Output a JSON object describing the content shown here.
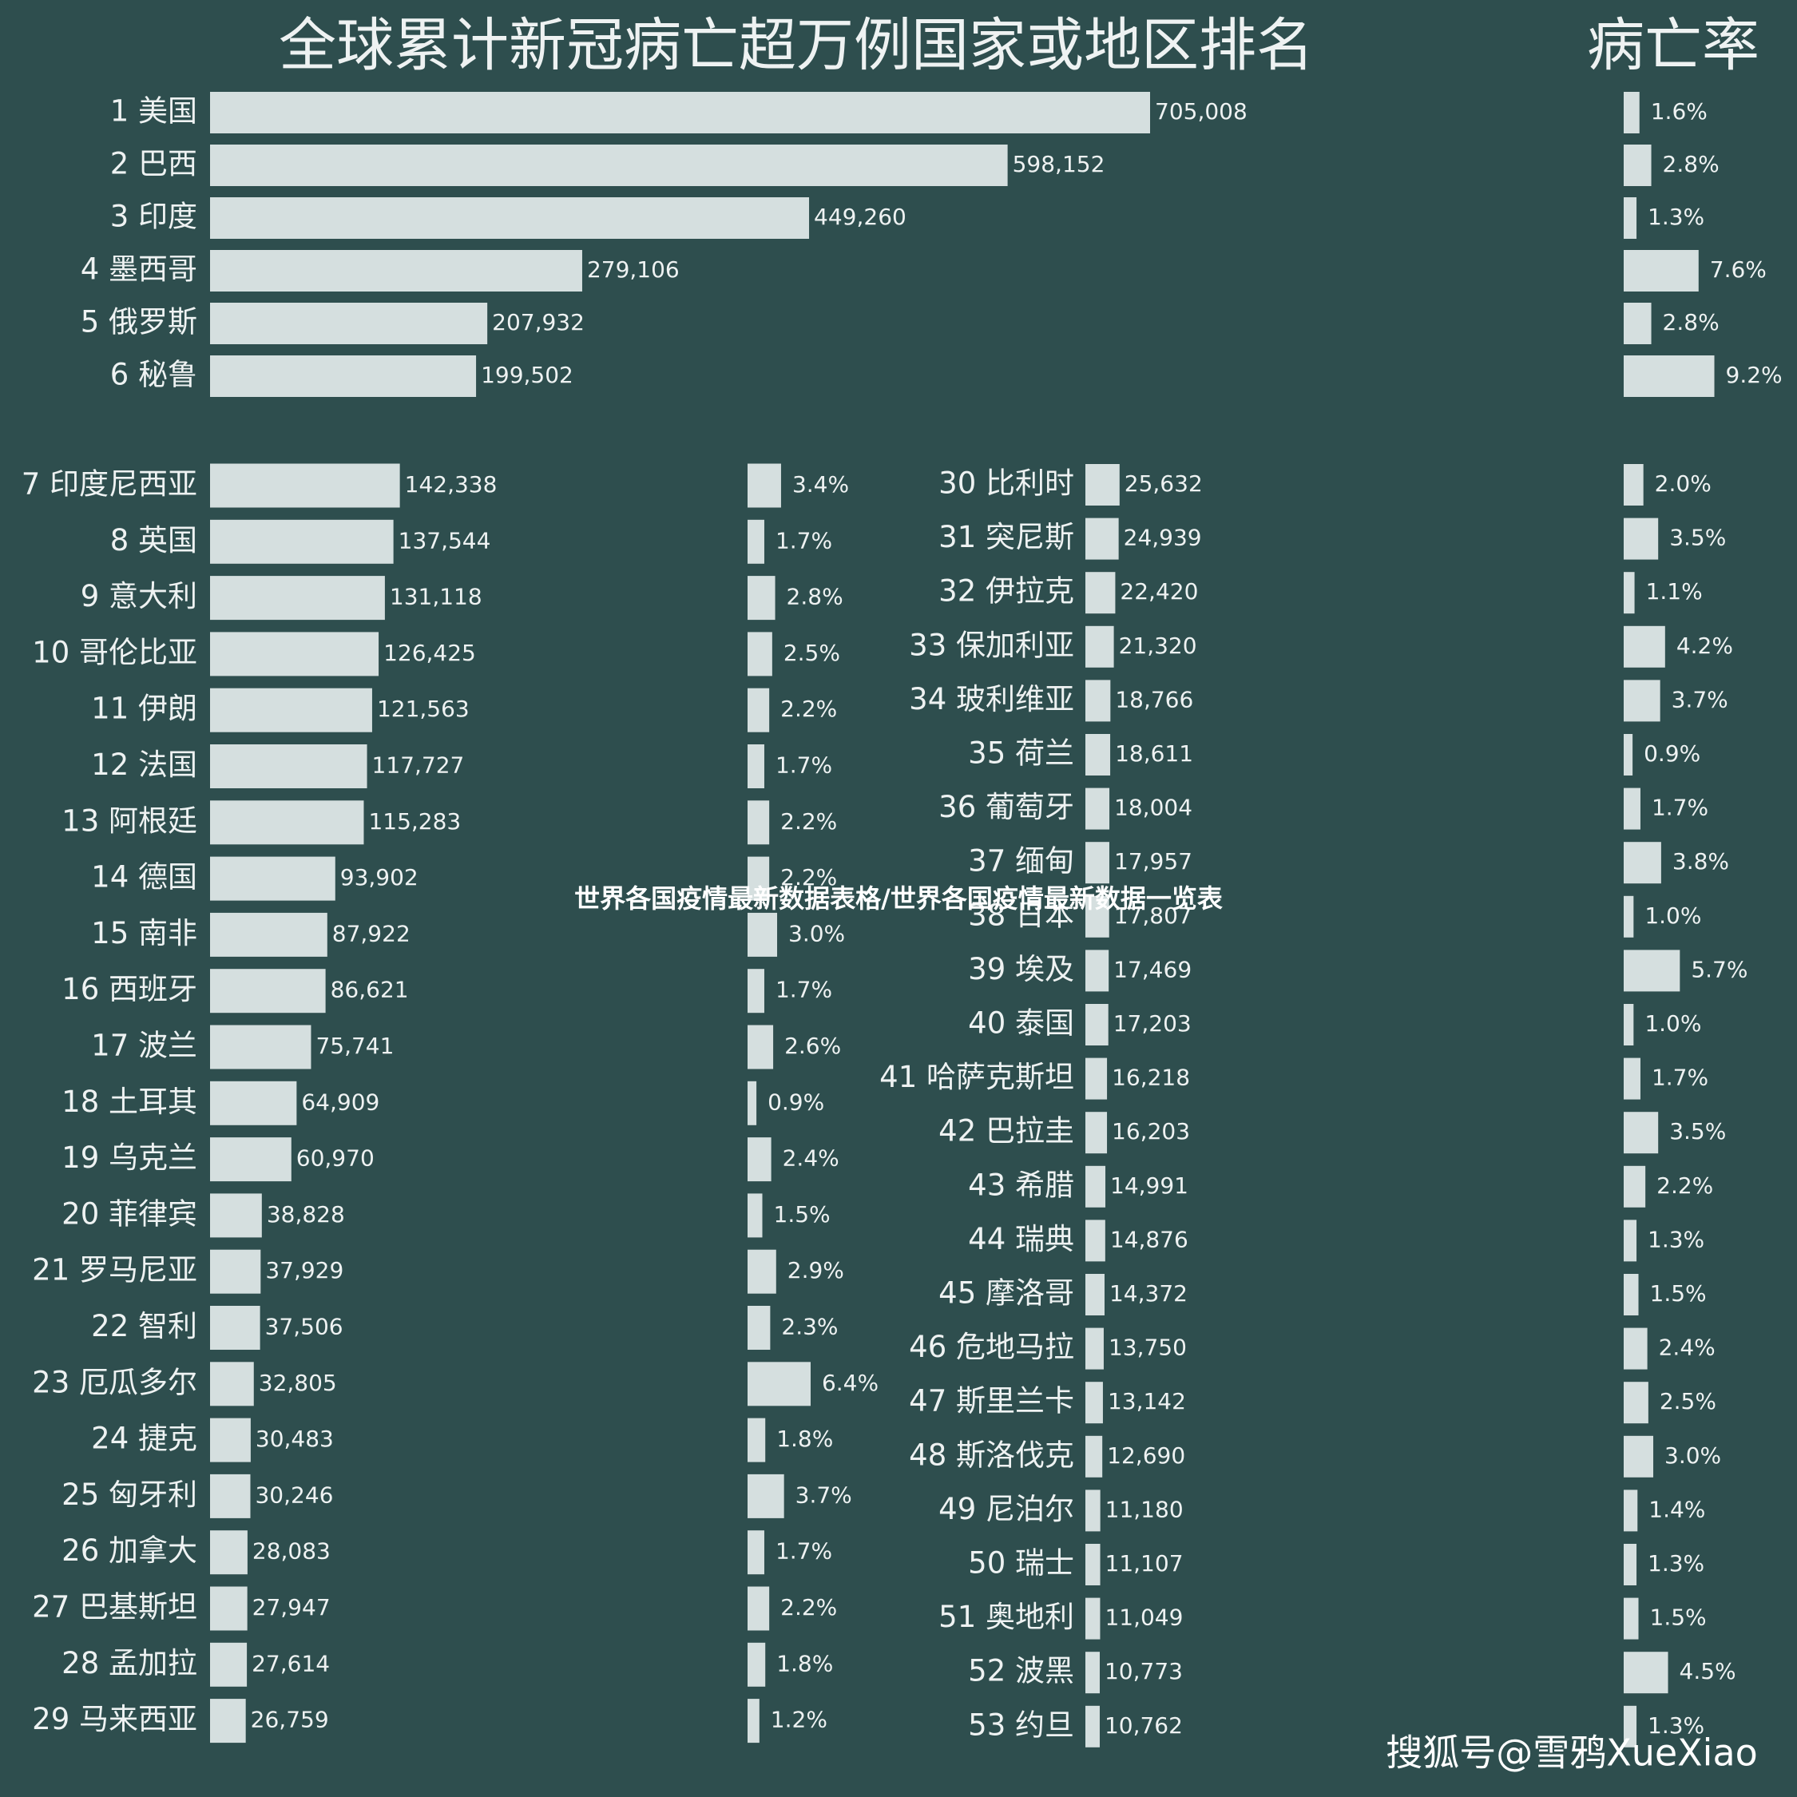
{
  "chart_data": {
    "type": "bar",
    "title": "全球累计新冠病亡超万例国家或地区排名",
    "rate_title": "病亡率",
    "categories": [
      "1 美国",
      "2 巴西",
      "3 印度",
      "4 墨西哥",
      "5 俄罗斯",
      "6 秘鲁",
      "7 印度尼西亚",
      "8 英国",
      "9 意大利",
      "10 哥伦比亚",
      "11 伊朗",
      "12 法国",
      "13 阿根廷",
      "14 德国",
      "15 南非",
      "16 西班牙",
      "17 波兰",
      "18 土耳其",
      "19 乌克兰",
      "20 菲律宾",
      "21 罗马尼亚",
      "22 智利",
      "23 厄瓜多尔",
      "24 捷克",
      "25 匈牙利",
      "26 加拿大",
      "27 巴基斯坦",
      "28 孟加拉",
      "29 马来西亚",
      "30 比利时",
      "31 突尼斯",
      "32 伊拉克",
      "33 保加利亚",
      "34 玻利维亚",
      "35 荷兰",
      "36 葡萄牙",
      "37 缅甸",
      "38 日本",
      "39 埃及",
      "40 泰国",
      "41 哈萨克斯坦",
      "42 巴拉圭",
      "43 希腊",
      "44 瑞典",
      "45 摩洛哥",
      "46 危地马拉",
      "47 斯里兰卡",
      "48 斯洛伐克",
      "49 尼泊尔",
      "50 瑞士",
      "51 奥地利",
      "52 波黑",
      "53 约旦"
    ],
    "values": [
      705008,
      598152,
      449260,
      279106,
      207932,
      199502,
      142338,
      137544,
      131118,
      126425,
      121563,
      117727,
      115283,
      93902,
      87922,
      86621,
      75741,
      64909,
      60970,
      38828,
      37929,
      37506,
      32805,
      30483,
      30246,
      28083,
      27947,
      27614,
      26759,
      25632,
      24939,
      22420,
      21320,
      18766,
      18611,
      18004,
      17957,
      17807,
      17469,
      17203,
      16218,
      16203,
      14991,
      14876,
      14372,
      13750,
      13142,
      12690,
      11180,
      11107,
      11049,
      10773,
      10762
    ],
    "value_labels": [
      "705,008",
      "598,152",
      "449,260",
      "279,106",
      "207,932",
      "199,502",
      "142,338",
      "137,544",
      "131,118",
      "126,425",
      "121,563",
      "117,727",
      "115,283",
      "93,902",
      "87,922",
      "86,621",
      "75,741",
      "64,909",
      "60,970",
      "38,828",
      "37,929",
      "37,506",
      "32,805",
      "30,483",
      "30,246",
      "28,083",
      "27,947",
      "27,614",
      "26,759",
      "25,632",
      "24,939",
      "22,420",
      "21,320",
      "18,766",
      "18,611",
      "18,004",
      "17,957",
      "17,807",
      "17,469",
      "17,203",
      "16,218",
      "16,203",
      "14,991",
      "14,876",
      "14,372",
      "13,750",
      "13,142",
      "12,690",
      "11,180",
      "11,107",
      "11,049",
      "10,773",
      "10,762"
    ],
    "rates": [
      1.6,
      2.8,
      1.3,
      7.6,
      2.8,
      9.2,
      3.4,
      1.7,
      2.8,
      2.5,
      2.2,
      1.7,
      2.2,
      2.2,
      3.0,
      1.7,
      2.6,
      0.9,
      2.4,
      1.5,
      2.9,
      2.3,
      6.4,
      1.8,
      3.7,
      1.7,
      2.2,
      1.8,
      1.2,
      2.0,
      3.5,
      1.1,
      4.2,
      3.7,
      0.9,
      1.7,
      3.8,
      1.0,
      5.7,
      1.0,
      1.7,
      3.5,
      2.2,
      1.3,
      1.5,
      2.4,
      2.5,
      3.0,
      1.4,
      1.3,
      1.5,
      4.5,
      1.3
    ],
    "rate_labels": [
      "1.6%",
      "2.8%",
      "1.3%",
      "7.6%",
      "2.8%",
      "9.2%",
      "3.4%",
      "1.7%",
      "2.8%",
      "2.5%",
      "2.2%",
      "1.7%",
      "2.2%",
      "2.2%",
      "3.0%",
      "1.7%",
      "2.6%",
      "0.9%",
      "2.4%",
      "1.5%",
      "2.9%",
      "2.3%",
      "6.4%",
      "1.8%",
      "3.7%",
      "1.7%",
      "2.2%",
      "1.8%",
      "1.2%",
      "2.0%",
      "3.5%",
      "1.1%",
      "4.2%",
      "3.7%",
      "0.9%",
      "1.7%",
      "3.8%",
      "1.0%",
      "5.7%",
      "1.0%",
      "1.7%",
      "3.5%",
      "2.2%",
      "1.3%",
      "1.5%",
      "2.4%",
      "2.5%",
      "3.0%",
      "1.4%",
      "1.3%",
      "1.5%",
      "4.5%",
      "1.3%"
    ]
  },
  "caption": "世界各国疫情最新数据表格/世界各国疫情最新数据一览表",
  "watermark": "搜狐号@雪鸦XueXiao"
}
